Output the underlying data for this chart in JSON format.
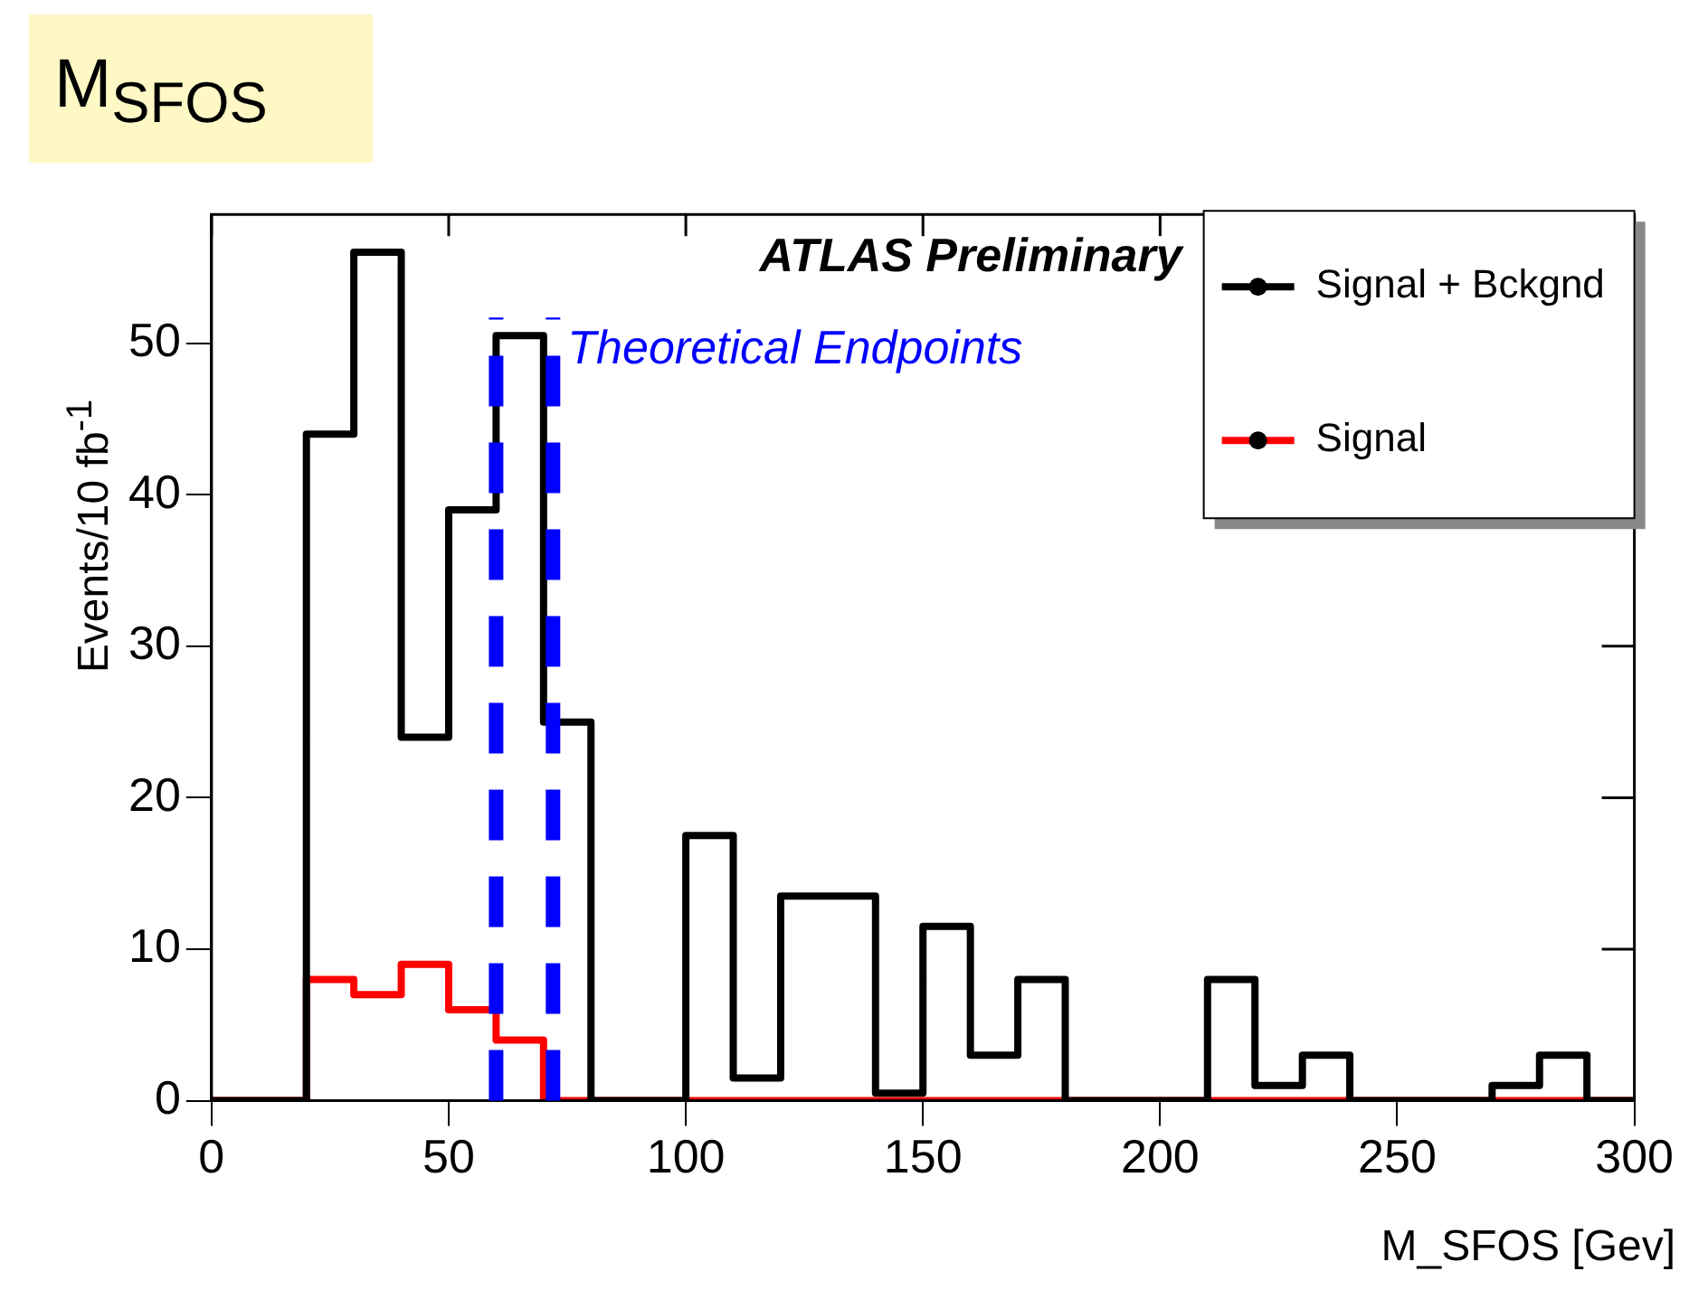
{
  "chart_data": {
    "type": "histogram",
    "title": "M$_{SFOS}$",
    "xlabel": "M_SFOS [Gev]",
    "ylabel": "Events/10 fb$^{-1}$",
    "bins": [
      0,
      10,
      20,
      30,
      40,
      50,
      60,
      70,
      80,
      90,
      100,
      110,
      120,
      130,
      140,
      150,
      160,
      170,
      180,
      190,
      200,
      210,
      220,
      230,
      240,
      250,
      260,
      270,
      280,
      290,
      300
    ],
    "series": [
      {
        "name": "Signal + Bckgnd",
        "color": "#000000",
        "values": [
          0,
          0,
          44,
          56,
          24,
          39,
          50.5,
          25,
          0,
          0,
          17.5,
          1.5,
          13.5,
          13.5,
          0.5,
          11.5,
          3,
          8,
          0,
          0,
          0,
          8,
          1,
          3,
          0,
          0,
          0,
          1,
          3,
          0
        ]
      },
      {
        "name": "Signal",
        "color": "#ff0000",
        "values": [
          0,
          0,
          8,
          7,
          9,
          6,
          4,
          0,
          0,
          0,
          0,
          0,
          0,
          0,
          0,
          0,
          0,
          0,
          0,
          0,
          0,
          0,
          0,
          0,
          0,
          0,
          0,
          0,
          0,
          0
        ]
      }
    ],
    "xlim": [
      0,
      300
    ],
    "xticks": [
      0,
      50,
      100,
      150,
      200,
      250,
      300
    ],
    "ylim": [
      0,
      58.5
    ],
    "yticks": [
      0,
      10,
      20,
      30,
      40,
      50
    ],
    "ref_lines": [
      {
        "axis": "x",
        "value": 60,
        "color": "#0000ff",
        "line_style": "dashed"
      },
      {
        "axis": "x",
        "value": 72,
        "label": "Theoretical Endpoints",
        "color": "#0000ff",
        "line_style": "dashed"
      }
    ],
    "annotations": [
      "ATLAS Preliminary"
    ],
    "legend": "top right",
    "marker": "circle",
    "grid": false
  }
}
